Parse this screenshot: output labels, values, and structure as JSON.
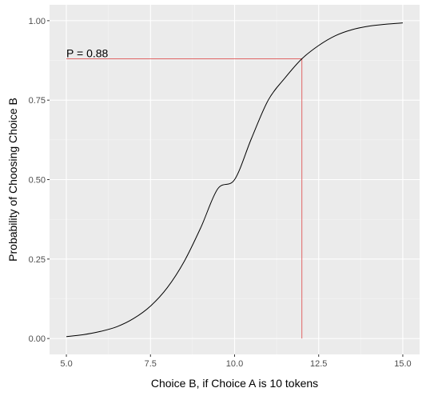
{
  "chart_data": {
    "type": "line",
    "title": "",
    "xlabel": "Choice B, if Choice A is 10 tokens",
    "ylabel": "Probability of Choosing Choice B",
    "xlim": [
      4.5,
      15.5
    ],
    "ylim": [
      -0.05,
      1.05
    ],
    "xticks": [
      5.0,
      7.5,
      10.0,
      12.5,
      15.0
    ],
    "xtick_labels": [
      "5.0",
      "7.5",
      "10.0",
      "12.5",
      "15.0"
    ],
    "yticks": [
      0.0,
      0.25,
      0.5,
      0.75,
      1.0
    ],
    "ytick_labels": [
      "0.00",
      "0.25",
      "0.50",
      "0.75",
      "1.00"
    ],
    "grid": true,
    "series": [
      {
        "x": [
          5.0,
          5.5,
          6.0,
          6.5,
          7.0,
          7.5,
          8.0,
          8.5,
          9.0,
          9.5,
          10.0,
          10.5,
          11.0,
          11.5,
          12.0,
          12.5,
          13.0,
          13.5,
          14.0,
          14.5,
          15.0
        ],
        "y": [
          0.006,
          0.012,
          0.022,
          0.037,
          0.063,
          0.102,
          0.16,
          0.242,
          0.35,
          0.471,
          0.5,
          0.629,
          0.75,
          0.82,
          0.88,
          0.922,
          0.953,
          0.972,
          0.983,
          0.989,
          0.993
        ]
      }
    ],
    "reference_lines": {
      "x": 12.0,
      "y": 0.88,
      "color": "#e06666"
    },
    "annotation": {
      "text": "P = 0.88",
      "x": 5.0,
      "y": 0.88
    },
    "colors": {
      "panel_background": "#ebebeb",
      "grid_major": "#ffffff",
      "curve": "#000000",
      "reference": "#e06666"
    }
  }
}
